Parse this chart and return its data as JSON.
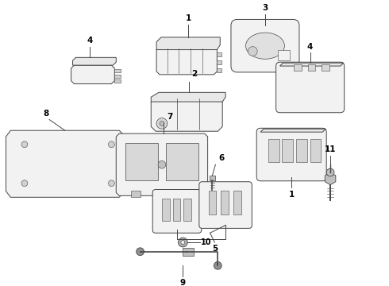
{
  "bg_color": "#ffffff",
  "line_color": "#444444",
  "text_color": "#000000",
  "lw": 0.7,
  "figsize": [
    4.9,
    3.6
  ],
  "dpi": 100
}
